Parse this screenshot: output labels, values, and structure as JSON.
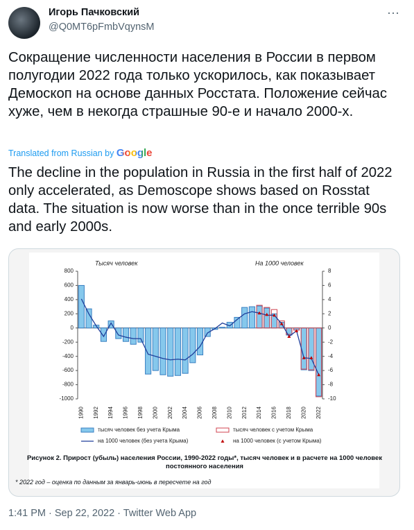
{
  "tweet": {
    "name": "Игорь Пачковский",
    "handle": "@Q0MT6pFmbVqynsM",
    "text_original": "Сокращение численности населения в России в первом полугодии 2022 года только ускорилось, как показывает Демоскоп на основе данных Росстата. Положение сейчас хуже, чем в некогда страшные 90-е и начало 2000-х.",
    "translation_note": "Translated from Russian by",
    "translation_provider": "Google",
    "text_translated": "The decline in the population in Russia in the first half of 2022 only accelerated, as Demoscope shows based on Rosstat data. The situation is now worse than in the once terrible 90s and early 2000s.",
    "timestamp": "1:41 PM · Sep 22, 2022 · Twitter Web App"
  },
  "chart_data": {
    "type": "bar",
    "title_left": "Тысяч человек",
    "title_right": "На 1000 человек",
    "caption": "Рисунок 2. Прирост (убыль) населения России, 1990-2022 годы*, тысяч человек и в расчете на 1000 человек постоянного населения",
    "footnote": "* 2022 год – оценка по данным за январь-июнь в пересчете на год",
    "categories": [
      "1990",
      null,
      "1992",
      null,
      "1994",
      null,
      "1996",
      null,
      "1998",
      null,
      "2000",
      null,
      "2002",
      null,
      "2004",
      null,
      "2006",
      null,
      "2008",
      null,
      "2010",
      null,
      "2012",
      null,
      "2014",
      null,
      "2016",
      null,
      "2018",
      null,
      "2020",
      null,
      "2022"
    ],
    "ylim": [
      -1000,
      800
    ],
    "yticks": [
      -1000,
      -800,
      -600,
      -400,
      -200,
      0,
      200,
      400,
      600,
      800
    ],
    "y2lim": [
      -10,
      8
    ],
    "y2ticks": [
      -10,
      -8,
      -6,
      -4,
      -2,
      0,
      2,
      4,
      6,
      8
    ],
    "series": [
      {
        "name": "тысяч человек без учета Крыма",
        "kind": "bar",
        "color": "#3a7fc2",
        "fill": "#86c8ec",
        "values": [
          600,
          270,
          40,
          -190,
          100,
          -150,
          -190,
          -230,
          -200,
          -650,
          -600,
          -660,
          -680,
          -670,
          -640,
          -490,
          -380,
          -120,
          -20,
          10,
          80,
          150,
          290,
          300,
          310,
          280,
          200,
          80,
          -100,
          -30,
          -590,
          -600,
          -960
        ]
      },
      {
        "name": "тысяч человек с учетом Крыма",
        "kind": "bar",
        "color": "#d0434f",
        "values": [
          null,
          null,
          null,
          null,
          null,
          null,
          null,
          null,
          null,
          null,
          null,
          null,
          null,
          null,
          null,
          null,
          null,
          null,
          null,
          null,
          null,
          null,
          null,
          null,
          320,
          290,
          260,
          100,
          -90,
          -30,
          -580,
          -590,
          -970
        ]
      },
      {
        "name": "на 1000 человек (без учета Крыма)",
        "kind": "line",
        "axis": "y2",
        "color": "#1f3e9a",
        "values": [
          4.1,
          2,
          0.3,
          -1.2,
          0.7,
          -1,
          -1.3,
          -1.5,
          -1.5,
          -3.7,
          -4,
          -4.3,
          -4.5,
          -4.4,
          -4.5,
          -3.7,
          -2.6,
          -0.7,
          -0.1,
          0.7,
          0.3,
          1.2,
          2,
          2.3,
          2.1,
          1.8,
          1.8,
          0.6,
          -1.2,
          -0.4,
          -4.2,
          -4.3,
          -6.6
        ]
      },
      {
        "name": "на 1000 человек (с учетом Крыма)",
        "kind": "marker",
        "axis": "y2",
        "color": "#c00000",
        "values": [
          null,
          null,
          null,
          null,
          null,
          null,
          null,
          null,
          null,
          null,
          null,
          null,
          null,
          null,
          null,
          null,
          null,
          null,
          null,
          null,
          null,
          null,
          null,
          null,
          2.1,
          1.9,
          1.8,
          0.6,
          -1.2,
          -0.4,
          -4.2,
          -4.2,
          -6.6
        ]
      }
    ]
  }
}
